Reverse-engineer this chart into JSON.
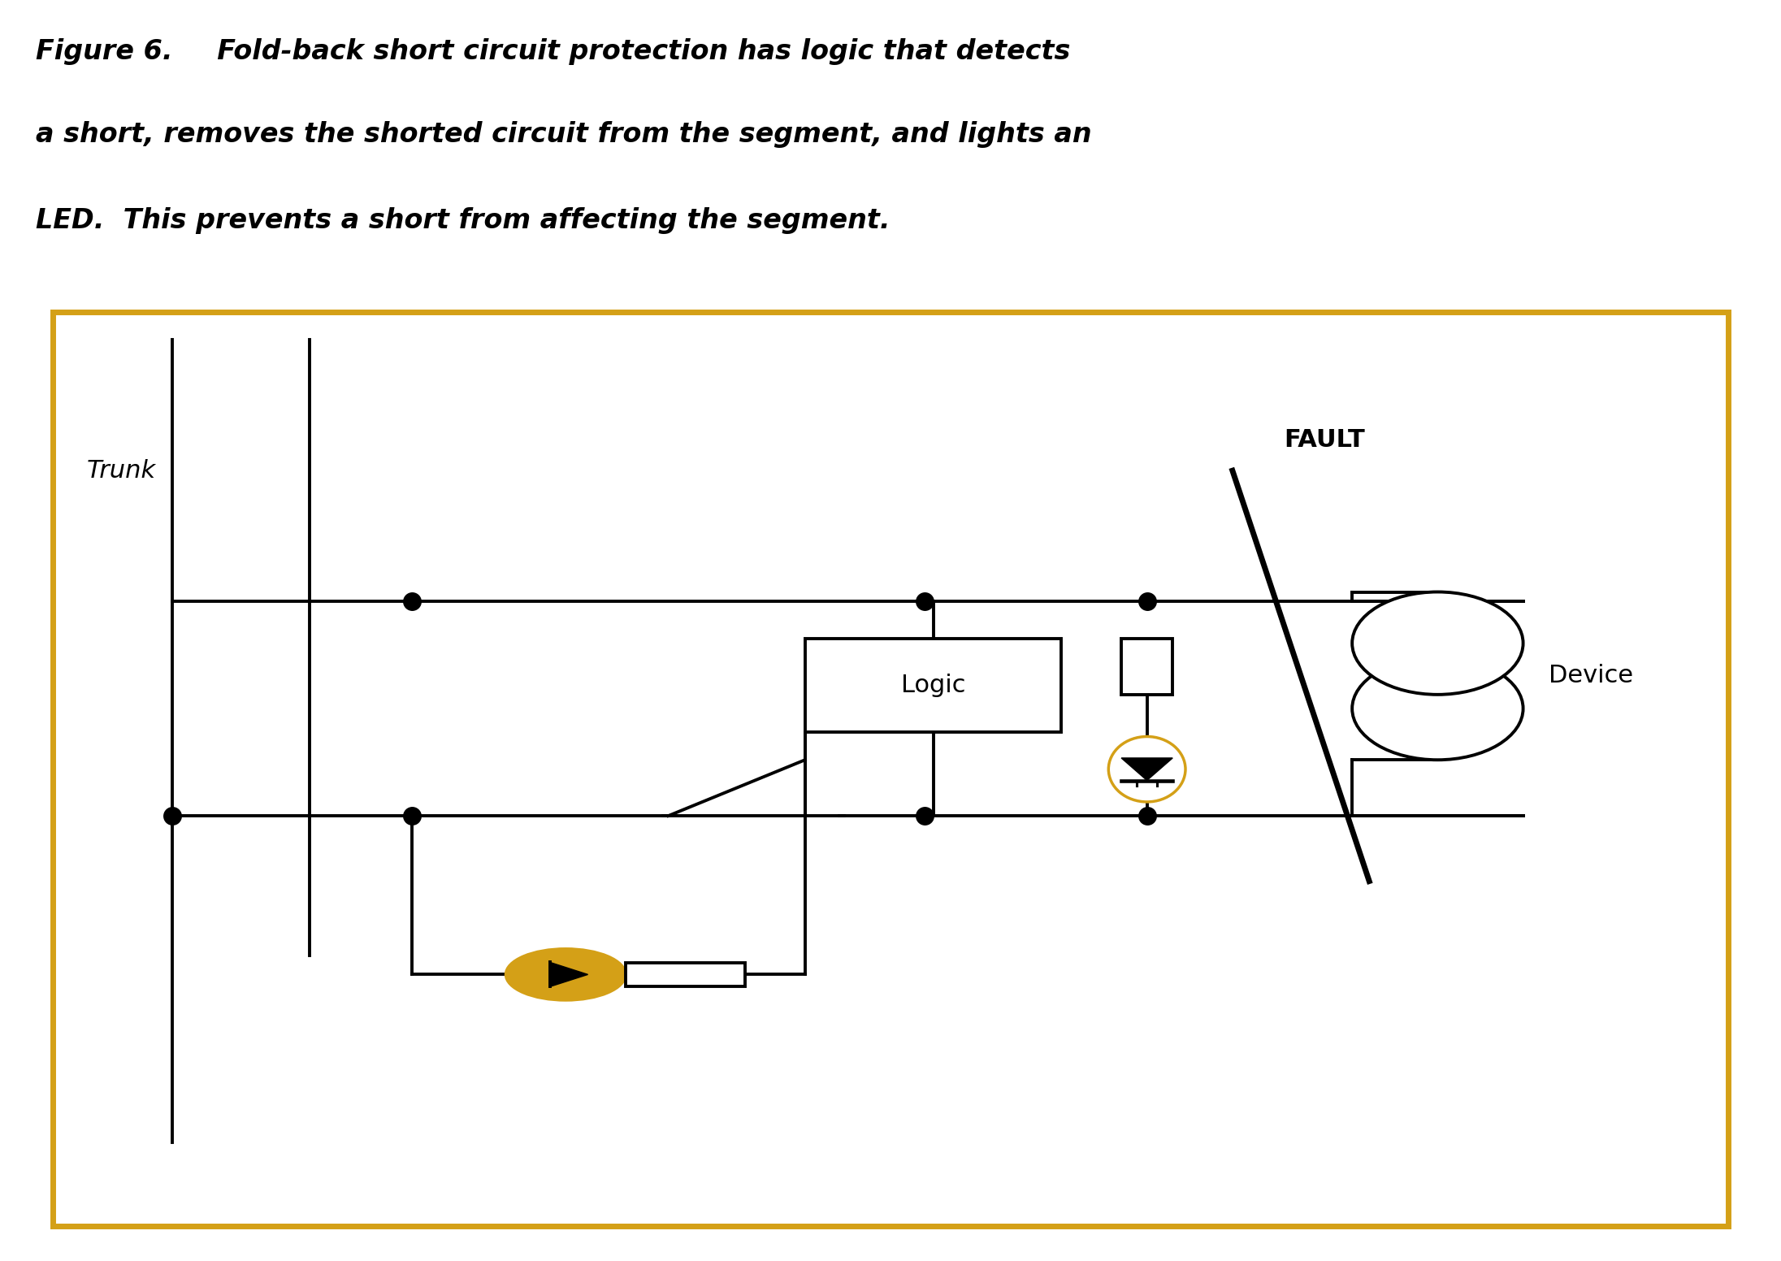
{
  "fig_width": 21.92,
  "fig_height": 15.52,
  "dpi": 100,
  "bg_color": "#ffffff",
  "border_color": "#D4A017",
  "line_color": "#000000",
  "led_color": "#D4A017",
  "caption_bold_part": "Figure 6.",
  "caption_rest1": "  Fold-back short circuit protection has logic that detects",
  "caption_line2": "a short, removes the shorted circuit from the segment, and lights an",
  "caption_line3": "LED.  This prevents a short from affecting the segment.",
  "caption_fontsize": 24,
  "trunk_label": "Trunk",
  "fault_label": "FAULT",
  "device_label": "Device",
  "logic_label": "Logic",
  "lw": 2.8,
  "dot_size": 120,
  "border_lw": 5
}
